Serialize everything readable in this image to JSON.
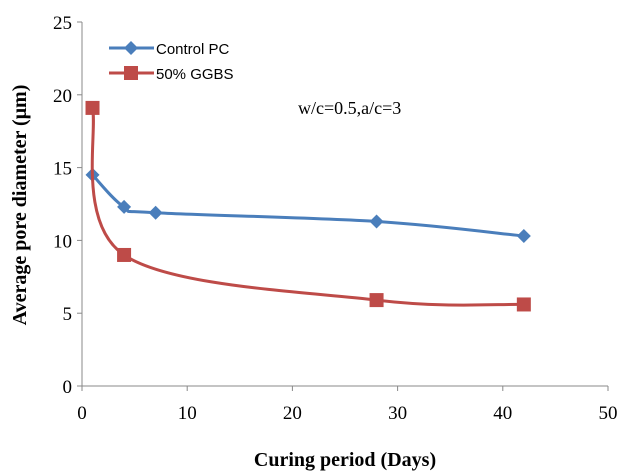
{
  "chart_data": {
    "type": "line",
    "xlabel": "Curing period (Days)",
    "ylabel": "Average pore diameter (μm)",
    "xlim": [
      0,
      50
    ],
    "ylim": [
      0,
      25
    ],
    "xticks": [
      0,
      10,
      20,
      30,
      40,
      50
    ],
    "yticks": [
      0,
      5,
      10,
      15,
      20,
      25
    ],
    "grid": false,
    "legend_position": "top-left",
    "annotation": "w/c=0.5,a/c=3",
    "series": [
      {
        "name": "Control PC",
        "color": "#4A7EBB",
        "marker": "diamond",
        "x": [
          1,
          4,
          7,
          28,
          42
        ],
        "y": [
          14.5,
          12.3,
          11.9,
          11.3,
          10.3
        ]
      },
      {
        "name": "50% GGBS",
        "color": "#BE4B48",
        "marker": "square",
        "x": [
          1,
          4,
          28,
          42
        ],
        "y": [
          19.1,
          9.0,
          5.9,
          5.6
        ]
      }
    ]
  }
}
